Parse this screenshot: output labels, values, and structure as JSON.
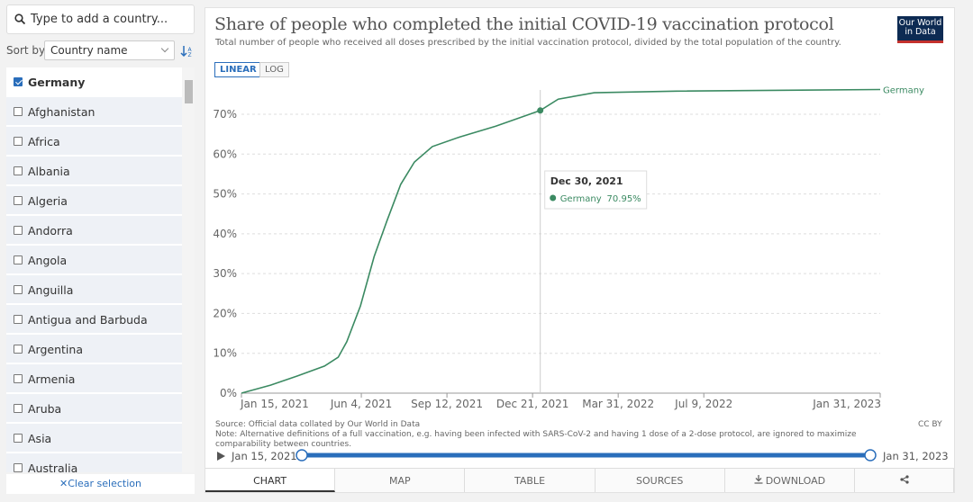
{
  "search": {
    "placeholder": "Type to add a country..."
  },
  "sort": {
    "label": "Sort by",
    "value": "Country name"
  },
  "countries": [
    {
      "name": "Germany",
      "checked": true
    },
    {
      "name": "Afghanistan",
      "checked": false
    },
    {
      "name": "Africa",
      "checked": false
    },
    {
      "name": "Albania",
      "checked": false
    },
    {
      "name": "Algeria",
      "checked": false
    },
    {
      "name": "Andorra",
      "checked": false
    },
    {
      "name": "Angola",
      "checked": false
    },
    {
      "name": "Anguilla",
      "checked": false
    },
    {
      "name": "Antigua and Barbuda",
      "checked": false
    },
    {
      "name": "Argentina",
      "checked": false
    },
    {
      "name": "Armenia",
      "checked": false
    },
    {
      "name": "Aruba",
      "checked": false
    },
    {
      "name": "Asia",
      "checked": false
    },
    {
      "name": "Australia",
      "checked": false
    }
  ],
  "clear": "Clear selection",
  "logo": [
    "Our World",
    "in Data"
  ],
  "chart_data": {
    "type": "line",
    "title": "Share of people who completed the initial COVID-19 vaccination protocol",
    "subtitle": "Total number of people who received all doses prescribed by the initial vaccination protocol, divided by the total population of the country.",
    "scale_buttons": [
      "LINEAR",
      "LOG"
    ],
    "log_scale": false,
    "x": [
      "2021-01-15",
      "2021-02-18",
      "2021-03-21",
      "2021-04-22",
      "2021-05-08",
      "2021-05-18",
      "2021-06-03",
      "2021-06-19",
      "2021-07-04",
      "2021-07-20",
      "2021-08-05",
      "2021-08-26",
      "2021-09-27",
      "2021-11-08",
      "2021-12-30",
      "2022-01-20",
      "2022-03-03",
      "2022-06-07",
      "2023-01-31"
    ],
    "series": [
      {
        "name": "Germany",
        "color": "#3b8a62",
        "values": [
          0,
          2,
          4.3,
          6.8,
          9,
          12.9,
          21.9,
          34.3,
          43.3,
          52.4,
          58,
          61.9,
          64.3,
          67,
          70.95,
          73.8,
          75.4,
          75.8,
          76.2
        ]
      }
    ],
    "xlim": [
      "2021-01-15",
      "2023-01-31"
    ],
    "xticks": [
      {
        "value": "2021-01-15",
        "label": "Jan 15, 2021"
      },
      {
        "value": "2021-06-04",
        "label": "Jun 4, 2021"
      },
      {
        "value": "2021-09-12",
        "label": "Sep 12, 2021"
      },
      {
        "value": "2021-12-21",
        "label": "Dec 21, 2021"
      },
      {
        "value": "2022-03-31",
        "label": "Mar 31, 2022"
      },
      {
        "value": "2022-07-09",
        "label": "Jul 9, 2022"
      },
      {
        "value": "2023-01-31",
        "label": "Jan 31, 2023"
      }
    ],
    "ylim": [
      0,
      77
    ],
    "yticks": [
      {
        "value": 0,
        "label": "0%"
      },
      {
        "value": 10,
        "label": "10%"
      },
      {
        "value": 20,
        "label": "20%"
      },
      {
        "value": 30,
        "label": "30%"
      },
      {
        "value": 40,
        "label": "40%"
      },
      {
        "value": 50,
        "label": "50%"
      },
      {
        "value": 60,
        "label": "60%"
      },
      {
        "value": 70,
        "label": "70%"
      }
    ],
    "grid": true,
    "tooltip": {
      "title": "Dec 30, 2021",
      "series": "Germany",
      "value": "70.95%"
    },
    "source": "Source: Official data collated by Our World in Data",
    "note": "Note: Alternative definitions of a full vaccination, e.g. having been infected with SARS-CoV-2 and having 1 dose of a 2-dose protocol, are ignored to maximize comparability between countries.",
    "license": "CC BY"
  },
  "timeline": {
    "start": "Jan 15, 2021",
    "end": "Jan 31, 2023"
  },
  "tabs": [
    "CHART",
    "MAP",
    "TABLE",
    "SOURCES",
    "DOWNLOAD"
  ],
  "active_tab": "CHART"
}
